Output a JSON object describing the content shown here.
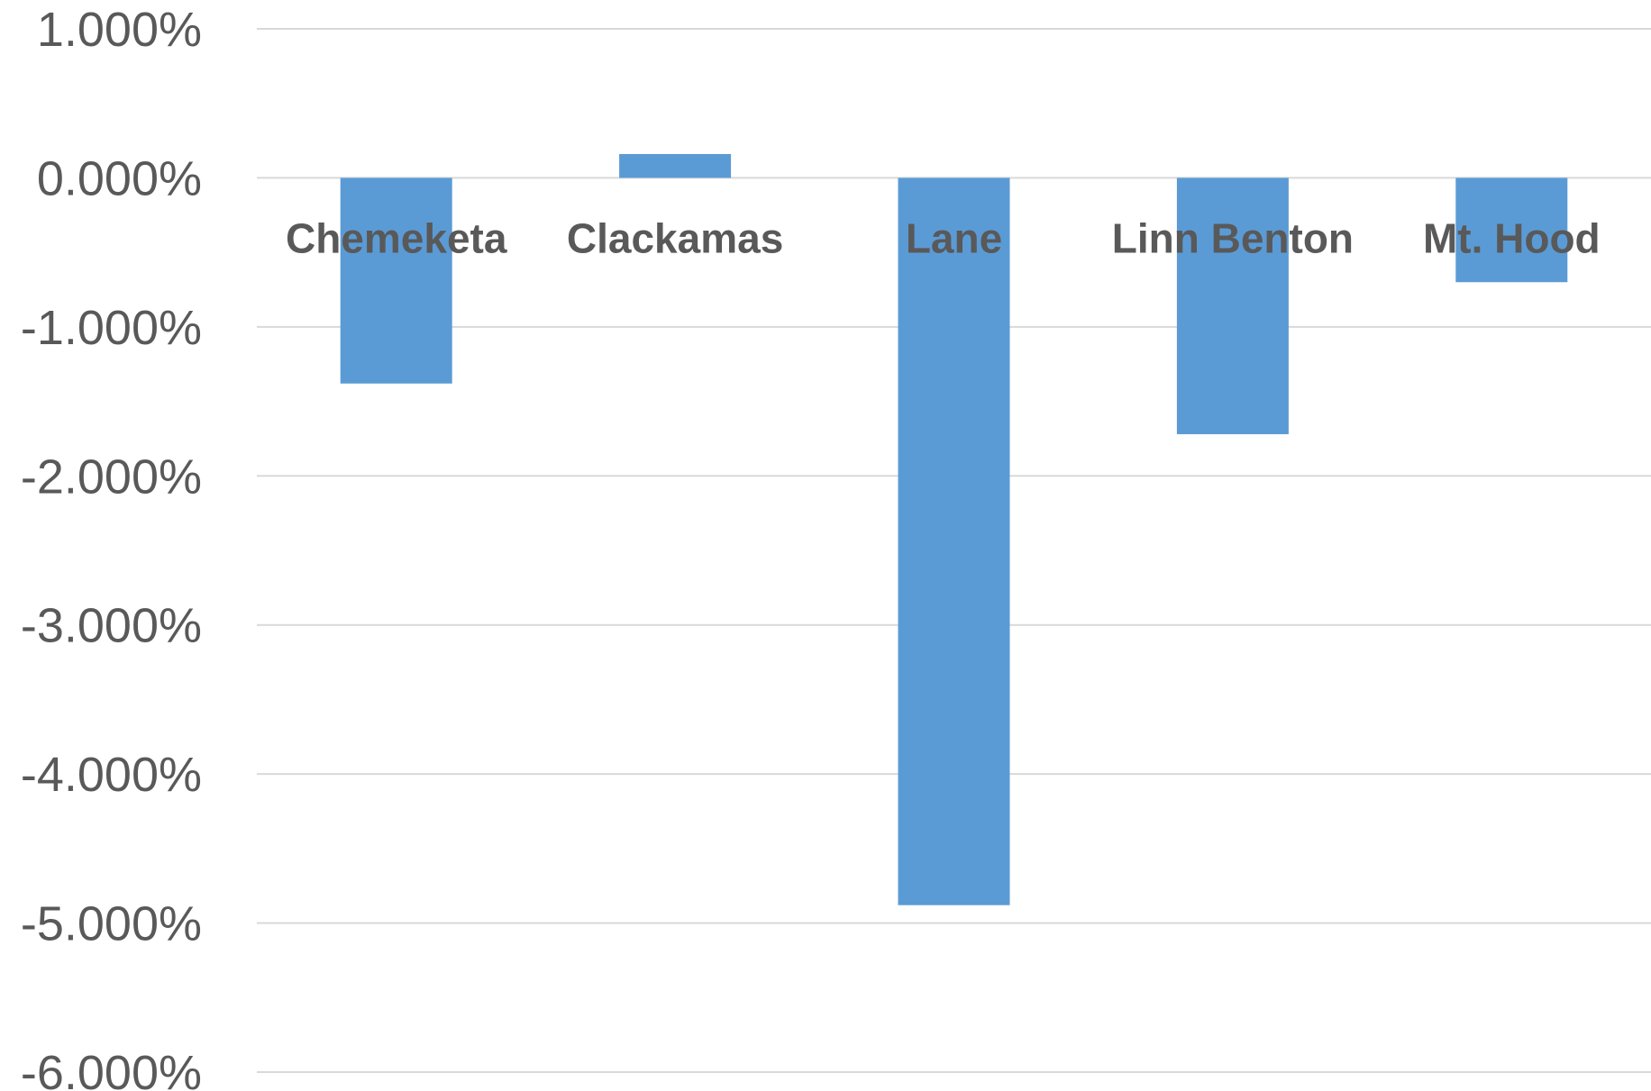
{
  "chart_data": {
    "type": "bar",
    "categories": [
      "Chemeketa",
      "Clackamas",
      "Lane",
      "Linn Benton",
      "Mt. Hood"
    ],
    "values": [
      -1.38,
      0.16,
      -4.88,
      -1.72,
      -0.7
    ],
    "ylim": [
      -6,
      1
    ],
    "yticks": [
      1,
      0,
      -1,
      -2,
      -3,
      -4,
      -5,
      -6
    ],
    "ytick_labels": [
      "1.000%",
      "0.000%",
      "-1.000%",
      "-2.000%",
      "-3.000%",
      "-4.000%",
      "-5.000%",
      "-6.000%"
    ],
    "grid": true,
    "bar_color": "#5b9bd5",
    "title": "",
    "xlabel": "",
    "ylabel": ""
  }
}
